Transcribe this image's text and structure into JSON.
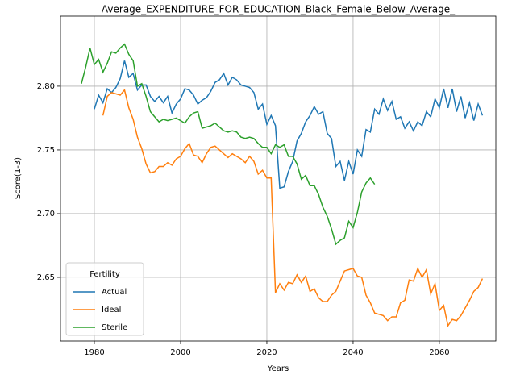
{
  "chart_data": {
    "type": "line",
    "title": "Average_EXPENDITURE_FOR_EDUCATION_Black_Female_Below_Average_",
    "xlabel": "Years",
    "ylabel": "Score(1-3)",
    "x": [
      1977,
      1978,
      1979,
      1980,
      1981,
      1982,
      1983,
      1984,
      1985,
      1986,
      1987,
      1988,
      1989,
      1990,
      1991,
      1992,
      1993,
      1994,
      1995,
      1996,
      1997,
      1998,
      1999,
      2000,
      2001,
      2002,
      2003,
      2004,
      2005,
      2006,
      2007,
      2008,
      2009,
      2010,
      2011,
      2012,
      2013,
      2014,
      2015,
      2016,
      2017,
      2018,
      2019,
      2020,
      2021,
      2022,
      2023,
      2024,
      2025,
      2026,
      2027,
      2028,
      2029,
      2030,
      2031,
      2032,
      2033,
      2034,
      2035,
      2036,
      2037,
      2038,
      2039,
      2040,
      2041,
      2042,
      2043,
      2044,
      2045,
      2046,
      2047,
      2048,
      2049,
      2050,
      2051,
      2052,
      2053,
      2054,
      2055,
      2056,
      2057,
      2058,
      2059,
      2060,
      2061,
      2062,
      2063,
      2064,
      2065,
      2066,
      2067,
      2068,
      2069,
      2070
    ],
    "series": [
      {
        "name": "Actual",
        "color": "#1f77b4",
        "values": [
          null,
          null,
          null,
          2.782,
          2.793,
          2.787,
          2.798,
          2.795,
          2.799,
          2.806,
          2.82,
          2.807,
          2.81,
          2.797,
          2.801,
          2.801,
          2.792,
          2.788,
          2.792,
          2.787,
          2.792,
          2.779,
          2.786,
          2.79,
          2.798,
          2.797,
          2.793,
          2.786,
          2.789,
          2.791,
          2.796,
          2.803,
          2.805,
          2.81,
          2.801,
          2.807,
          2.805,
          2.801,
          2.8,
          2.799,
          2.795,
          2.782,
          2.786,
          2.77,
          2.777,
          2.769,
          2.72,
          2.721,
          2.733,
          2.741,
          2.757,
          2.763,
          2.772,
          2.777,
          2.784,
          2.778,
          2.78,
          2.763,
          2.759,
          2.737,
          2.741,
          2.726,
          2.741,
          2.731,
          2.75,
          2.745,
          2.766,
          2.764,
          2.782,
          2.778,
          2.79,
          2.781,
          2.788,
          2.774,
          2.776,
          2.767,
          2.772,
          2.765,
          2.772,
          2.769,
          2.78,
          2.776,
          2.79,
          2.783,
          2.798,
          2.783,
          2.798,
          2.78,
          2.792,
          2.775,
          2.787,
          2.773,
          2.786,
          2.777
        ]
      },
      {
        "name": "Ideal",
        "color": "#ff7f0e",
        "values": [
          null,
          null,
          null,
          null,
          null,
          2.777,
          2.792,
          2.795,
          2.794,
          2.793,
          2.797,
          2.783,
          2.774,
          2.76,
          2.751,
          2.739,
          2.732,
          2.733,
          2.737,
          2.737,
          2.74,
          2.738,
          2.743,
          2.745,
          2.751,
          2.755,
          2.746,
          2.745,
          2.74,
          2.747,
          2.752,
          2.753,
          2.75,
          2.747,
          2.744,
          2.747,
          2.745,
          2.743,
          2.74,
          2.745,
          2.741,
          2.731,
          2.734,
          2.728,
          2.728,
          2.638,
          2.645,
          2.64,
          2.646,
          2.645,
          2.652,
          2.646,
          2.651,
          2.639,
          2.641,
          2.634,
          2.631,
          2.631,
          2.636,
          2.639,
          2.647,
          2.655,
          2.656,
          2.657,
          2.651,
          2.65,
          2.636,
          2.63,
          2.622,
          2.621,
          2.62,
          2.616,
          2.619,
          2.619,
          2.63,
          2.632,
          2.648,
          2.647,
          2.657,
          2.65,
          2.656,
          2.637,
          2.645,
          2.624,
          2.628,
          2.612,
          2.617,
          2.616,
          2.62,
          2.626,
          2.632,
          2.639,
          2.642,
          2.649
        ]
      },
      {
        "name": "Sterile",
        "color": "#2ca02c",
        "values": [
          2.802,
          2.815,
          2.83,
          2.817,
          2.821,
          2.811,
          2.818,
          2.827,
          2.826,
          2.83,
          2.833,
          2.825,
          2.82,
          2.8,
          2.802,
          2.792,
          2.78,
          2.776,
          2.772,
          2.774,
          2.773,
          2.774,
          2.775,
          2.773,
          2.771,
          2.776,
          2.779,
          2.78,
          2.767,
          2.768,
          2.769,
          2.771,
          2.768,
          2.765,
          2.764,
          2.765,
          2.764,
          2.76,
          2.759,
          2.76,
          2.759,
          2.755,
          2.752,
          2.752,
          2.747,
          2.754,
          2.752,
          2.754,
          2.745,
          2.745,
          2.739,
          2.727,
          2.73,
          2.722,
          2.722,
          2.715,
          2.705,
          2.698,
          2.688,
          2.676,
          2.679,
          2.681,
          2.694,
          2.689,
          2.701,
          2.717,
          2.724,
          2.728,
          2.723,
          null,
          null,
          null,
          null,
          null,
          null,
          null,
          null,
          null,
          null,
          null,
          null,
          null,
          null,
          null,
          null,
          null,
          null,
          null,
          null,
          null,
          null,
          null,
          null,
          null
        ]
      }
    ],
    "xlim": [
      1972.15,
      2073.1
    ],
    "ylim": [
      2.6,
      2.855
    ],
    "xticks": [
      1980,
      2000,
      2020,
      2040,
      2060
    ],
    "yticks": [
      2.65,
      {
        "value": 2.7,
        "label": "2.70"
      },
      2.75,
      {
        "value": 2.8,
        "label": "2.80"
      }
    ],
    "grid": true,
    "legend_title": "Fertility",
    "legend_position": "lower left"
  }
}
